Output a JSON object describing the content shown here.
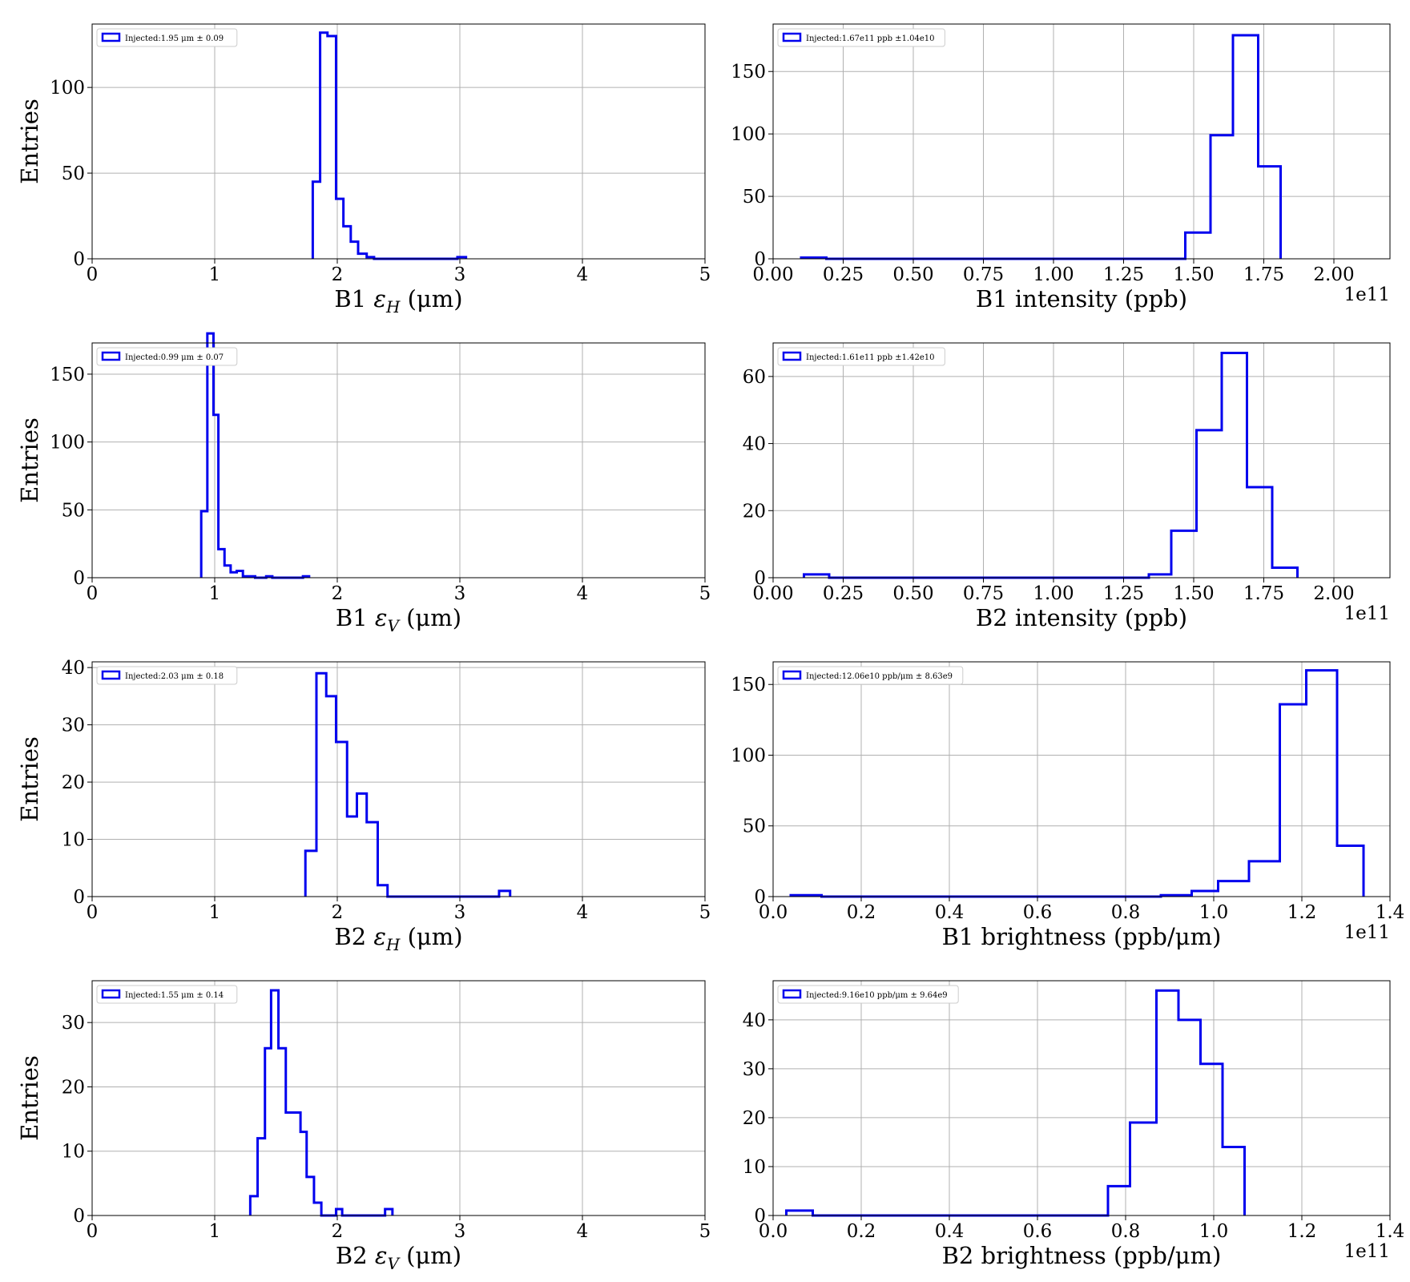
{
  "chart_data": [
    {
      "type": "histogram",
      "panel": "B1 eH",
      "xlabel": "B1 ε_H (μm)",
      "xlabel_parts": {
        "prefix": "B1 ",
        "symbol": "ε",
        "sub": "H",
        "suffix": " (μm)"
      },
      "ylabel": "Entries",
      "legend": "Injected:1.95 μm ± 0.09",
      "legend_position": "top-left",
      "xlim": [
        0,
        5
      ],
      "ylim": [
        0,
        137
      ],
      "xticks": [
        0,
        1,
        2,
        3,
        4,
        5
      ],
      "xticklabels": [
        "0",
        "1",
        "2",
        "3",
        "4",
        "5"
      ],
      "yticks": [
        0,
        50,
        100
      ],
      "yticklabels": [
        "0",
        "50",
        "100"
      ],
      "offset_text": "",
      "grid": true,
      "bin_edges": [
        1.8,
        1.86,
        1.92,
        1.99,
        2.05,
        2.11,
        2.17,
        2.24,
        2.3,
        2.36,
        2.42,
        2.48,
        2.55,
        2.61,
        2.67,
        2.73,
        2.8,
        2.86,
        2.92,
        2.98,
        3.05
      ],
      "counts": [
        45,
        132,
        130,
        35,
        19,
        10,
        3,
        1,
        0,
        0,
        0,
        0,
        0,
        0,
        0,
        0,
        0,
        0,
        0,
        1
      ]
    },
    {
      "type": "histogram",
      "panel": "B1 intensity",
      "xlabel": "B1 intensity (ppb)",
      "xlabel_parts": {
        "prefix": "B1 intensity (ppb)",
        "symbol": "",
        "sub": "",
        "suffix": ""
      },
      "ylabel": "",
      "legend": "Injected:1.67e11 ppb ±1.04e10",
      "legend_position": "top-left",
      "xlim": [
        0,
        2.2
      ],
      "ylim": [
        0,
        188
      ],
      "xticks": [
        0,
        0.25,
        0.5,
        0.75,
        1.0,
        1.25,
        1.5,
        1.75,
        2.0
      ],
      "xticklabels": [
        "0.00",
        "0.25",
        "0.50",
        "0.75",
        "1.00",
        "1.25",
        "1.50",
        "1.75",
        "2.00"
      ],
      "yticks": [
        0,
        50,
        100,
        150
      ],
      "yticklabels": [
        "0",
        "50",
        "100",
        "150"
      ],
      "offset_text": "1e11",
      "grid": true,
      "bin_edges": [
        0.1,
        0.19,
        1.47,
        1.56,
        1.64,
        1.73,
        1.81
      ],
      "counts": [
        1,
        0,
        21,
        99,
        179,
        74
      ]
    },
    {
      "type": "histogram",
      "panel": "B1 eV",
      "xlabel": "B1 ε_V (μm)",
      "xlabel_parts": {
        "prefix": "B1 ",
        "symbol": "ε",
        "sub": "V",
        "suffix": " (μm)"
      },
      "ylabel": "Entries",
      "legend": "Injected:0.99 μm ± 0.07",
      "legend_position": "top-left",
      "xlim": [
        0,
        5
      ],
      "ylim": [
        0,
        173
      ],
      "xticks": [
        0,
        1,
        2,
        3,
        4,
        5
      ],
      "xticklabels": [
        "0",
        "1",
        "2",
        "3",
        "4",
        "5"
      ],
      "yticks": [
        0,
        50,
        100,
        150
      ],
      "yticklabels": [
        "0",
        "50",
        "100",
        "150"
      ],
      "offset_text": "",
      "grid": true,
      "bin_edges": [
        0.89,
        0.94,
        0.99,
        1.03,
        1.08,
        1.13,
        1.18,
        1.23,
        1.28,
        1.33,
        1.38,
        1.42,
        1.47,
        1.52,
        1.57,
        1.62,
        1.67,
        1.72,
        1.77
      ],
      "counts": [
        49,
        180,
        120,
        21,
        9,
        4,
        5,
        1,
        1,
        0,
        0,
        1,
        0,
        0,
        0,
        0,
        0,
        1
      ]
    },
    {
      "type": "histogram",
      "panel": "B2 intensity",
      "xlabel": "B2 intensity (ppb)",
      "xlabel_parts": {
        "prefix": "B2 intensity (ppb)",
        "symbol": "",
        "sub": "",
        "suffix": ""
      },
      "ylabel": "",
      "legend": "Injected:1.61e11 ppb ±1.42e10",
      "legend_position": "top-left",
      "xlim": [
        0,
        2.2
      ],
      "ylim": [
        0,
        70
      ],
      "xticks": [
        0,
        0.25,
        0.5,
        0.75,
        1.0,
        1.25,
        1.5,
        1.75,
        2.0
      ],
      "xticklabels": [
        "0.00",
        "0.25",
        "0.50",
        "0.75",
        "1.00",
        "1.25",
        "1.50",
        "1.75",
        "2.00"
      ],
      "yticks": [
        0,
        20,
        40,
        60
      ],
      "yticklabels": [
        "0",
        "20",
        "40",
        "60"
      ],
      "offset_text": "1e11",
      "grid": true,
      "bin_edges": [
        0.11,
        0.2,
        1.34,
        1.42,
        1.51,
        1.6,
        1.69,
        1.78,
        1.87
      ],
      "counts": [
        1,
        0,
        1,
        14,
        44,
        67,
        27,
        3
      ]
    },
    {
      "type": "histogram",
      "panel": "B2 eH",
      "xlabel": "B2 ε_H (μm)",
      "xlabel_parts": {
        "prefix": "B2 ",
        "symbol": "ε",
        "sub": "H",
        "suffix": " (μm)"
      },
      "ylabel": "Entries",
      "legend": "Injected:2.03 μm ± 0.18",
      "legend_position": "top-left",
      "xlim": [
        0,
        5
      ],
      "ylim": [
        0,
        41
      ],
      "xticks": [
        0,
        1,
        2,
        3,
        4,
        5
      ],
      "xticklabels": [
        "0",
        "1",
        "2",
        "3",
        "4",
        "5"
      ],
      "yticks": [
        0,
        10,
        20,
        30,
        40
      ],
      "yticklabels": [
        "0",
        "10",
        "20",
        "30",
        "40"
      ],
      "offset_text": "",
      "grid": true,
      "bin_edges": [
        1.74,
        1.83,
        1.91,
        1.99,
        2.08,
        2.16,
        2.24,
        2.33,
        2.41,
        2.49,
        2.58,
        2.66,
        2.74,
        2.82,
        2.91,
        2.99,
        3.07,
        3.16,
        3.24,
        3.32,
        3.41
      ],
      "counts": [
        8,
        39,
        35,
        27,
        14,
        18,
        13,
        2,
        0,
        0,
        0,
        0,
        0,
        0,
        0,
        0,
        0,
        0,
        0,
        1
      ]
    },
    {
      "type": "histogram",
      "panel": "B1 brightness",
      "xlabel": "B1 brightness (ppb/μm)",
      "xlabel_parts": {
        "prefix": "B1 brightness (ppb/μm)",
        "symbol": "",
        "sub": "",
        "suffix": ""
      },
      "ylabel": "",
      "legend": "Injected:12.06e10 ppb/μm ± 8.63e9",
      "legend_position": "top-left",
      "xlim": [
        0,
        1.4
      ],
      "ylim": [
        0,
        166
      ],
      "xticks": [
        0,
        0.2,
        0.4,
        0.6,
        0.8,
        1.0,
        1.2,
        1.4
      ],
      "xticklabels": [
        "0.0",
        "0.2",
        "0.4",
        "0.6",
        "0.8",
        "1.0",
        "1.2",
        "1.4"
      ],
      "yticks": [
        0,
        50,
        100,
        150
      ],
      "yticklabels": [
        "0",
        "50",
        "100",
        "150"
      ],
      "offset_text": "1e11",
      "grid": true,
      "bin_edges": [
        0.04,
        0.11,
        0.88,
        0.95,
        1.01,
        1.08,
        1.15,
        1.21,
        1.28,
        1.34
      ],
      "counts": [
        1,
        0,
        1,
        4,
        11,
        25,
        136,
        160,
        36
      ]
    },
    {
      "type": "histogram",
      "panel": "B2 eV",
      "xlabel": "B2 ε_V (μm)",
      "xlabel_parts": {
        "prefix": "B2 ",
        "symbol": "ε",
        "sub": "V",
        "suffix": " (μm)"
      },
      "ylabel": "Entries",
      "legend": "Injected:1.55 μm ± 0.14",
      "legend_position": "top-left",
      "xlim": [
        0,
        5
      ],
      "ylim": [
        0,
        36.5
      ],
      "xticks": [
        0,
        1,
        2,
        3,
        4,
        5
      ],
      "xticklabels": [
        "0",
        "1",
        "2",
        "3",
        "4",
        "5"
      ],
      "yticks": [
        0,
        10,
        20,
        30
      ],
      "yticklabels": [
        "0",
        "10",
        "20",
        "30"
      ],
      "offset_text": "",
      "grid": true,
      "bin_edges": [
        1.29,
        1.35,
        1.41,
        1.46,
        1.52,
        1.58,
        1.64,
        1.7,
        1.75,
        1.81,
        1.87,
        1.93,
        1.99,
        2.04,
        2.1,
        2.16,
        2.22,
        2.28,
        2.33,
        2.39,
        2.45
      ],
      "counts": [
        3,
        12,
        26,
        35,
        26,
        16,
        16,
        13,
        6,
        2,
        0,
        0,
        1,
        0,
        0,
        0,
        0,
        0,
        0,
        1
      ]
    },
    {
      "type": "histogram",
      "panel": "B2 brightness",
      "xlabel": "B2 brightness (ppb/μm)",
      "xlabel_parts": {
        "prefix": "B2 brightness (ppb/μm)",
        "symbol": "",
        "sub": "",
        "suffix": ""
      },
      "ylabel": "",
      "legend": "Injected:9.16e10 ppb/μm ± 9.64e9",
      "legend_position": "top-left",
      "xlim": [
        0,
        1.4
      ],
      "ylim": [
        0,
        48
      ],
      "xticks": [
        0,
        0.2,
        0.4,
        0.6,
        0.8,
        1.0,
        1.2,
        1.4
      ],
      "xticklabels": [
        "0.0",
        "0.2",
        "0.4",
        "0.6",
        "0.8",
        "1.0",
        "1.2",
        "1.4"
      ],
      "yticks": [
        0,
        10,
        20,
        30,
        40
      ],
      "yticklabels": [
        "0",
        "10",
        "20",
        "30",
        "40"
      ],
      "offset_text": "1e11",
      "grid": true,
      "bin_edges": [
        0.03,
        0.09,
        0.76,
        0.81,
        0.87,
        0.92,
        0.97,
        1.02,
        1.07
      ],
      "counts": [
        1,
        0,
        6,
        19,
        46,
        40,
        31,
        14
      ]
    }
  ],
  "colors": {
    "series": "#0000ee",
    "grid": "#b0b0b0",
    "axes": "#000000",
    "legend_frame": "#cccccc"
  }
}
